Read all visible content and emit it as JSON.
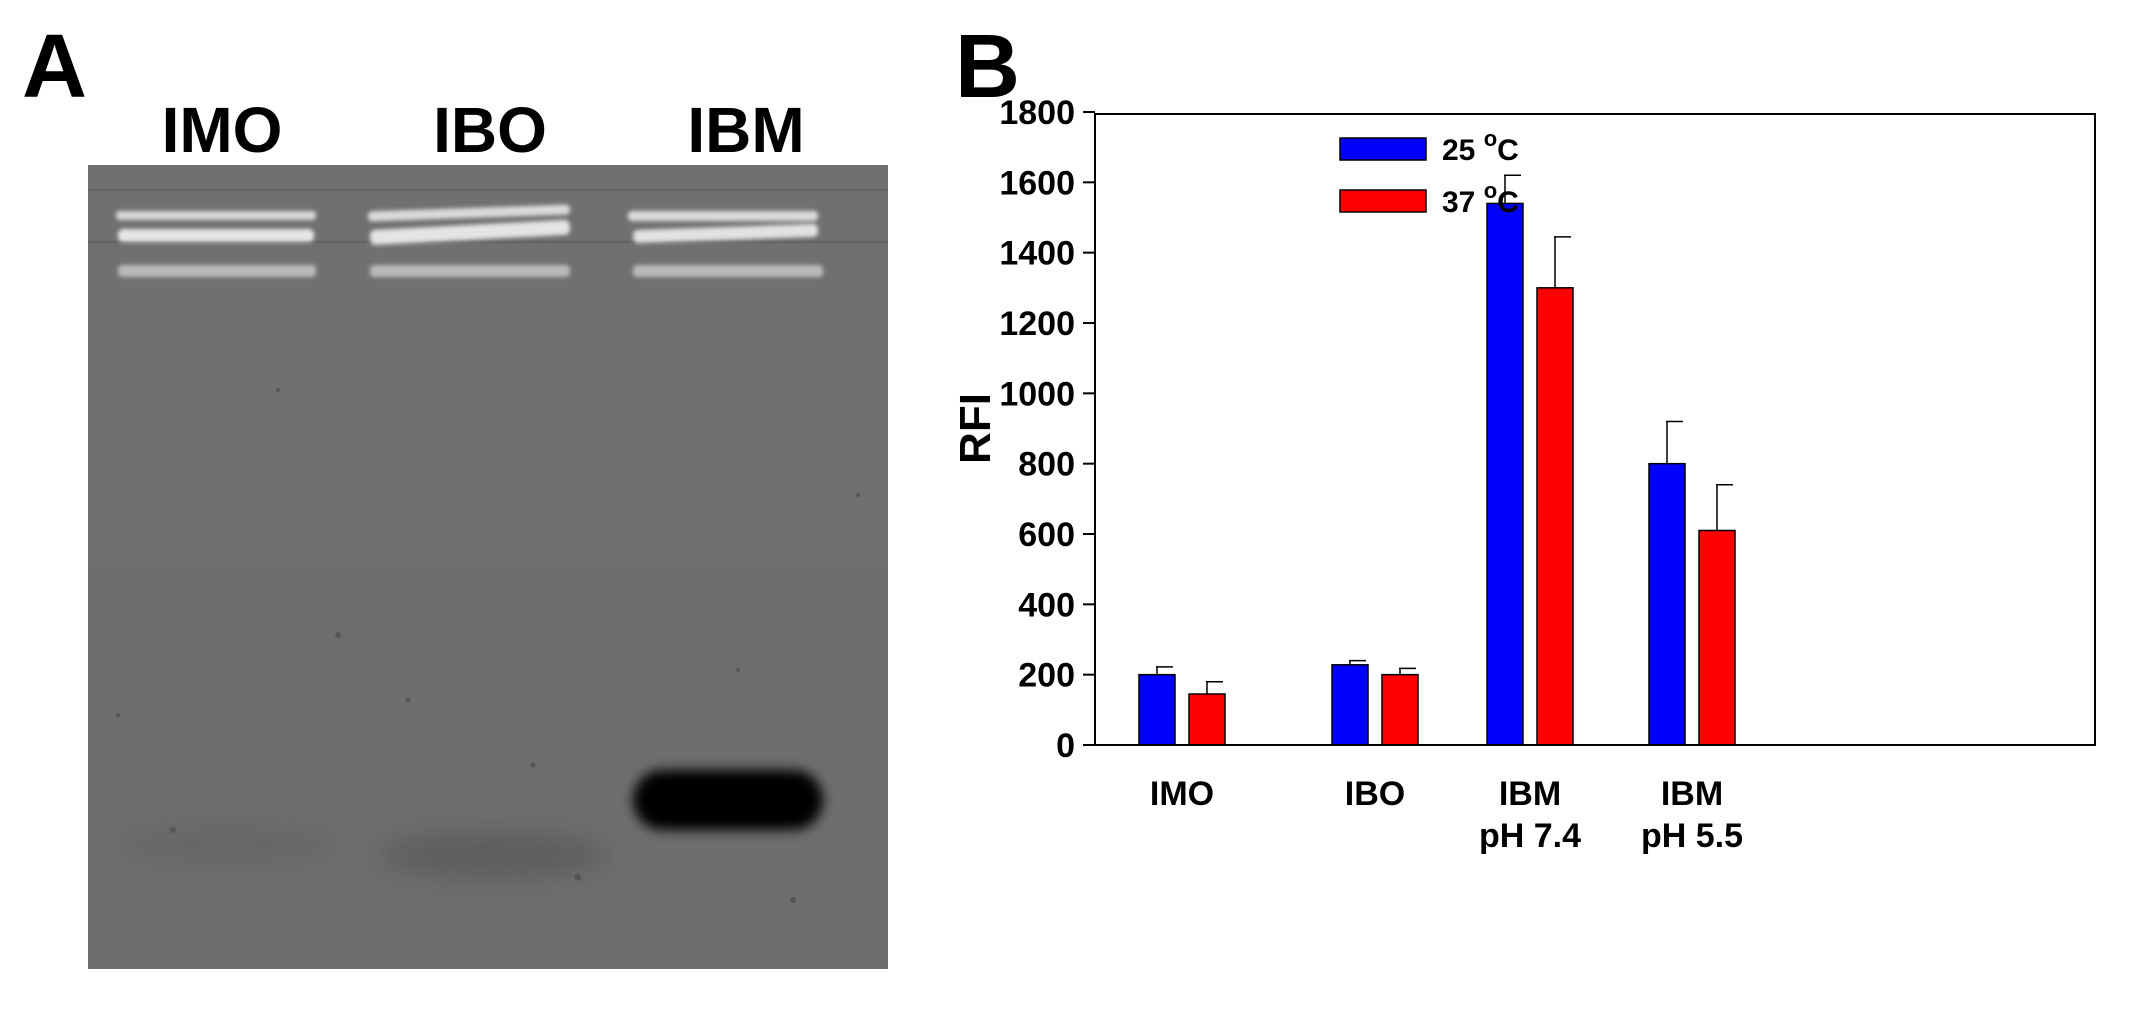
{
  "panel_a": {
    "letter": "A",
    "lanes": [
      "IMO",
      "IBO",
      "IBM"
    ]
  },
  "panel_b": {
    "letter": "B"
  },
  "chart_data": {
    "type": "bar",
    "categories": [
      [
        "IMO"
      ],
      [
        "IBO"
      ],
      [
        "IBM",
        "pH 7.4"
      ],
      [
        "IBM",
        "pH 5.5"
      ]
    ],
    "series": [
      {
        "name": "25 °C",
        "name_base": "25",
        "name_sup": "o",
        "name_unit": "C",
        "color": "#0000ff",
        "values": [
          200,
          228,
          1540,
          800
        ],
        "errors": [
          22,
          12,
          80,
          120
        ]
      },
      {
        "name": "37 °C",
        "name_base": "37",
        "name_sup": "o",
        "name_unit": "C",
        "color": "#ff0000",
        "values": [
          145,
          200,
          1300,
          610
        ],
        "errors": [
          35,
          18,
          145,
          130
        ]
      }
    ],
    "ylabel": "RFI",
    "ylim": [
      0,
      1800
    ],
    "yticks": [
      0,
      200,
      400,
      600,
      800,
      1000,
      1200,
      1400,
      1600,
      1800
    ],
    "grid": false,
    "legend": "top-right",
    "error_bars": "upper"
  }
}
